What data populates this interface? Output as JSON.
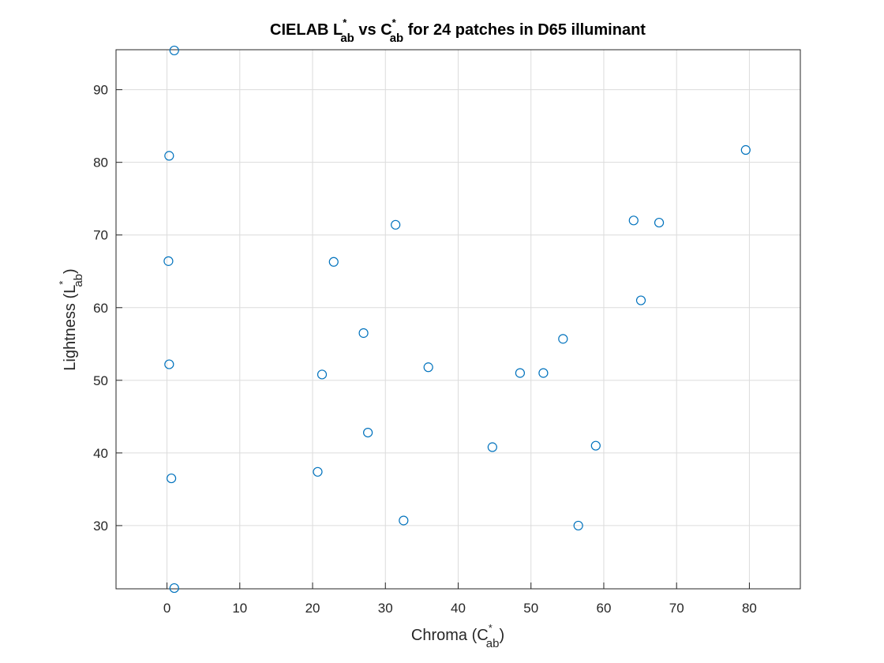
{
  "chart_data": {
    "type": "scatter",
    "title": {
      "prefix": "CIELAB L",
      "mid": " vs C",
      "suffix": " for 24 patches in D65 illuminant",
      "sup": "*",
      "sub": "ab"
    },
    "xlabel": {
      "prefix": "Chroma (C",
      "sup": "*",
      "sub": "ab",
      "suffix": ")"
    },
    "ylabel": {
      "prefix": "Lightness (L",
      "sup": "*",
      "sub": "ab",
      "suffix": ")"
    },
    "xlim": [
      -7,
      87
    ],
    "ylim": [
      21.3,
      95.5
    ],
    "xticks": [
      0,
      10,
      20,
      30,
      40,
      50,
      60,
      70,
      80
    ],
    "yticks": [
      30,
      40,
      50,
      60,
      70,
      80,
      90
    ],
    "grid": true,
    "marker": "circle",
    "color": "#0072bd",
    "points": [
      {
        "x": 1.0,
        "y": 95.4
      },
      {
        "x": 0.3,
        "y": 80.9
      },
      {
        "x": 0.2,
        "y": 66.4
      },
      {
        "x": 0.3,
        "y": 52.2
      },
      {
        "x": 0.6,
        "y": 36.5
      },
      {
        "x": 1.0,
        "y": 21.4
      },
      {
        "x": 20.7,
        "y": 37.4
      },
      {
        "x": 21.3,
        "y": 50.8
      },
      {
        "x": 22.9,
        "y": 66.3
      },
      {
        "x": 27.0,
        "y": 56.5
      },
      {
        "x": 27.6,
        "y": 42.8
      },
      {
        "x": 31.4,
        "y": 71.4
      },
      {
        "x": 32.5,
        "y": 30.7
      },
      {
        "x": 35.9,
        "y": 51.8
      },
      {
        "x": 44.7,
        "y": 40.8
      },
      {
        "x": 48.5,
        "y": 51.0
      },
      {
        "x": 51.7,
        "y": 51.0
      },
      {
        "x": 54.4,
        "y": 55.7
      },
      {
        "x": 56.5,
        "y": 30.0
      },
      {
        "x": 58.9,
        "y": 41.0
      },
      {
        "x": 64.1,
        "y": 72.0
      },
      {
        "x": 65.1,
        "y": 61.0
      },
      {
        "x": 67.6,
        "y": 71.7
      },
      {
        "x": 79.5,
        "y": 81.7
      }
    ]
  }
}
